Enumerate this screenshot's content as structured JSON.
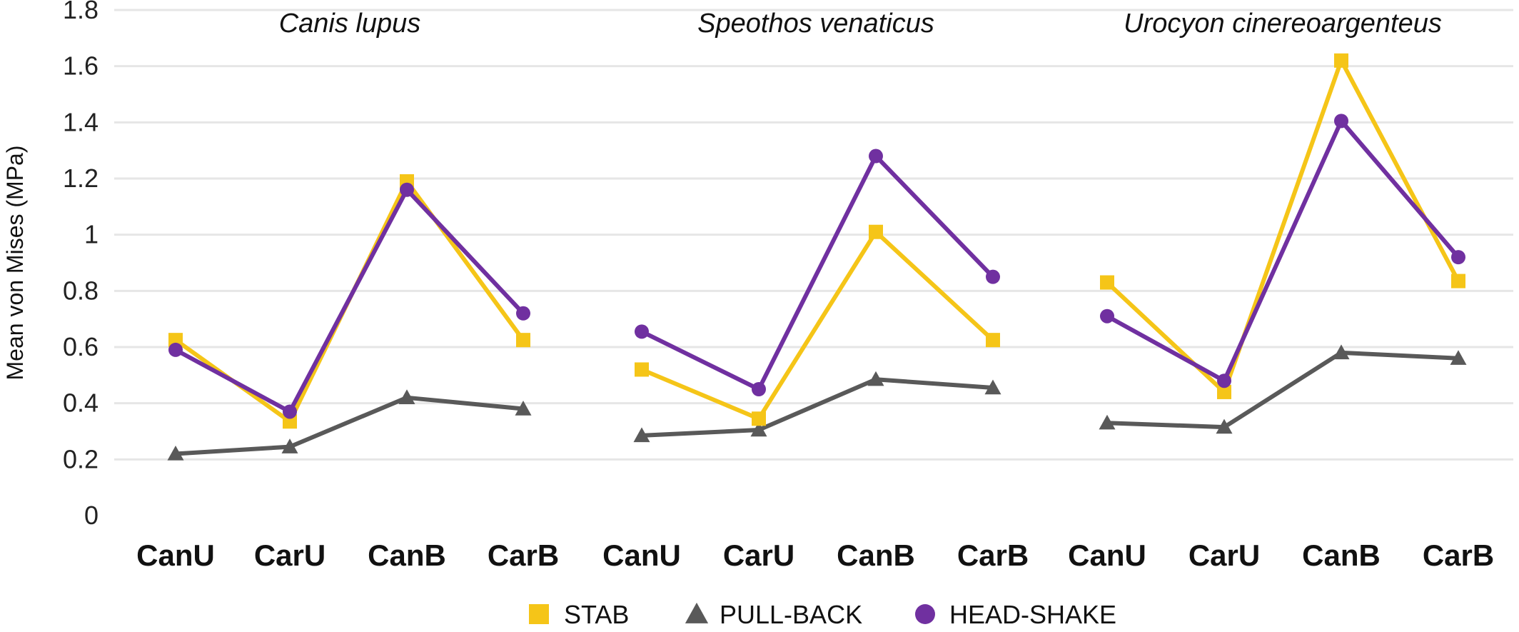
{
  "chart_data": {
    "type": "line",
    "ylabel": "Mean von Mises (MPa)",
    "ylim": [
      0,
      1.8
    ],
    "yticks": [
      0,
      0.2,
      0.4,
      0.6,
      0.8,
      1,
      1.2,
      1.4,
      1.6,
      1.8
    ],
    "ytick_labels": [
      "0",
      "0.2",
      "0.4",
      "0.6",
      "0.8",
      "1",
      "1.2",
      "1.4",
      "1.6",
      "1.8"
    ],
    "grid": true,
    "legend_position": "bottom",
    "categories": [
      "CanU",
      "CarU",
      "CanB",
      "CarB"
    ],
    "series_meta": [
      {
        "name": "STAB",
        "color": "#F5C518",
        "marker": "square"
      },
      {
        "name": "PULL-BACK",
        "color": "#595959",
        "marker": "triangle"
      },
      {
        "name": "HEAD-SHAKE",
        "color": "#7030A0",
        "marker": "circle"
      }
    ],
    "panels": [
      {
        "title": "Canis lupus",
        "series": [
          {
            "name": "STAB",
            "values": [
              0.625,
              0.335,
              1.19,
              0.625
            ]
          },
          {
            "name": "PULL-BACK",
            "values": [
              0.22,
              0.245,
              0.42,
              0.38
            ]
          },
          {
            "name": "HEAD-SHAKE",
            "values": [
              0.59,
              0.37,
              1.16,
              0.72
            ]
          }
        ]
      },
      {
        "title": "Speothos venaticus",
        "series": [
          {
            "name": "STAB",
            "values": [
              0.52,
              0.345,
              1.01,
              0.625
            ]
          },
          {
            "name": "PULL-BACK",
            "values": [
              0.285,
              0.305,
              0.485,
              0.455
            ]
          },
          {
            "name": "HEAD-SHAKE",
            "values": [
              0.655,
              0.45,
              1.28,
              0.85
            ]
          }
        ]
      },
      {
        "title": "Urocyon cinereoargenteus",
        "series": [
          {
            "name": "STAB",
            "values": [
              0.83,
              0.44,
              1.62,
              0.835
            ]
          },
          {
            "name": "PULL-BACK",
            "values": [
              0.33,
              0.315,
              0.58,
              0.56
            ]
          },
          {
            "name": "HEAD-SHAKE",
            "values": [
              0.71,
              0.48,
              1.405,
              0.92
            ]
          }
        ]
      }
    ]
  }
}
